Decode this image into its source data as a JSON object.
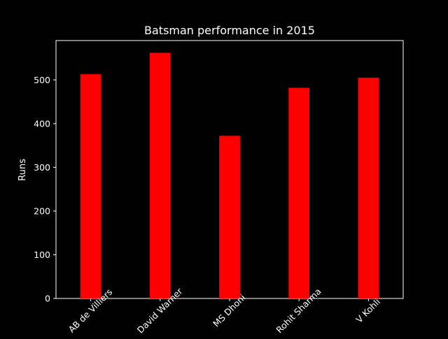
{
  "chart_data": {
    "type": "bar",
    "title": "Batsman performance in 2015",
    "xlabel": "",
    "ylabel": "Runs",
    "categories": [
      "AB de Villiers",
      "David Warner",
      "MS Dhoni",
      "Rohit Sharma",
      "V Kohli"
    ],
    "values": [
      513,
      562,
      372,
      482,
      505
    ],
    "ylim": [
      0,
      590
    ],
    "yticks": [
      0,
      100,
      200,
      300,
      400,
      500
    ],
    "grid": false,
    "bar_color": "#ff0000",
    "background": "#000000",
    "text_color": "#ffffff"
  }
}
